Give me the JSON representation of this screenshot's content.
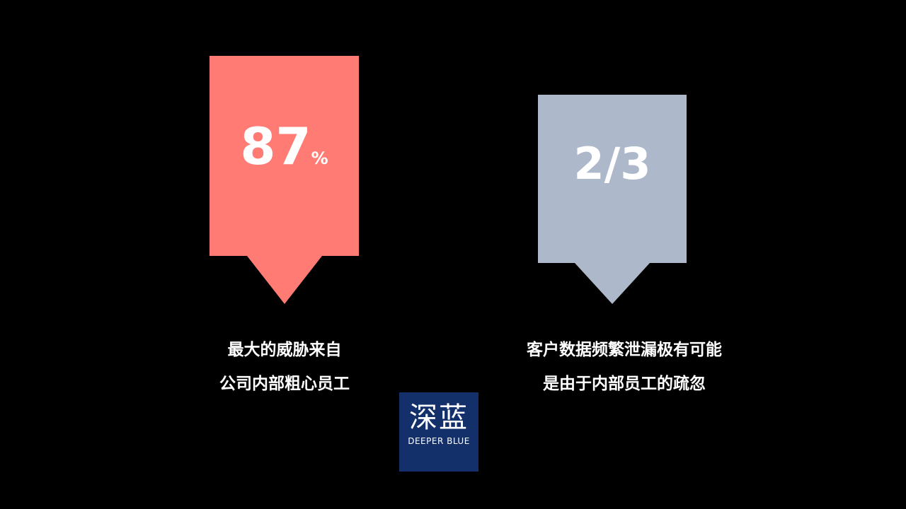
{
  "colors": {
    "background": "#000000",
    "left_callout": "#ff7b73",
    "right_callout": "#adb8cb",
    "logo_bg": "#13306a"
  },
  "left": {
    "value": "87",
    "unit": "%",
    "caption_lines": [
      "最大的威胁来自",
      "公司内部粗心员工"
    ]
  },
  "right": {
    "value": "2/3",
    "caption_lines": [
      "客户数据频繁泄漏极有可能",
      "是由于内部员工的疏忽"
    ]
  },
  "logo": {
    "cn": "深蓝",
    "en": "DEEPER BLUE"
  }
}
